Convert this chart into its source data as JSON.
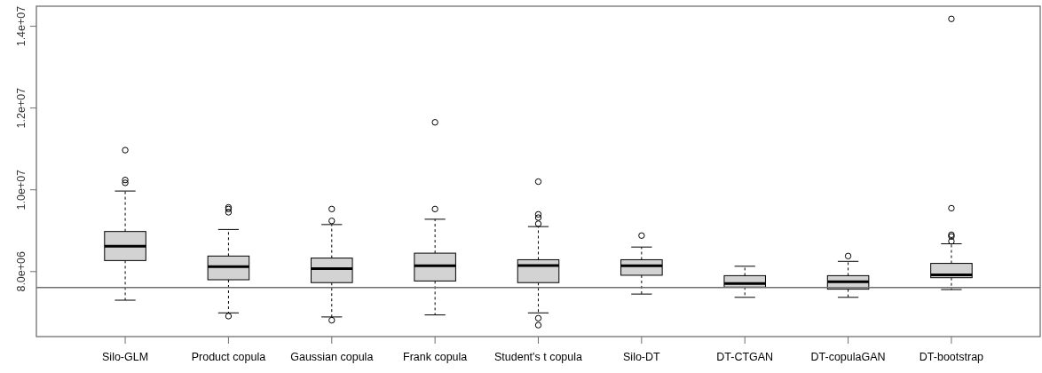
{
  "chart_data": {
    "type": "box",
    "categories": [
      "Silo-GLM",
      "Product copula",
      "Gaussian copula",
      "Frank copula",
      "Student's t copula",
      "Silo-DT",
      "DT-CTGAN",
      "DT-copulaGAN",
      "DT-bootstrap"
    ],
    "color": "#d3d3d3",
    "boxes": [
      {
        "low": 7300000,
        "q1": 8270000,
        "median": 8620000,
        "q3": 8980000,
        "high": 9970000,
        "outliers": [
          10970000,
          10240000,
          10170000
        ]
      },
      {
        "low": 6990000,
        "q1": 7800000,
        "median": 8120000,
        "q3": 8380000,
        "high": 9030000,
        "outliers": [
          9570000,
          9530000,
          9450000,
          6910000
        ]
      },
      {
        "low": 6890000,
        "q1": 7730000,
        "median": 8070000,
        "q3": 8330000,
        "high": 9150000,
        "outliers": [
          9530000,
          9240000,
          6810000
        ]
      },
      {
        "low": 6940000,
        "q1": 7770000,
        "median": 8140000,
        "q3": 8450000,
        "high": 9280000,
        "outliers": [
          9530000,
          11650000
        ]
      },
      {
        "low": 6990000,
        "q1": 7730000,
        "median": 8150000,
        "q3": 8290000,
        "high": 9100000,
        "outliers": [
          10200000,
          9400000,
          9320000,
          9170000,
          6860000,
          6690000
        ]
      },
      {
        "low": 7450000,
        "q1": 7910000,
        "median": 8140000,
        "q3": 8290000,
        "high": 8600000,
        "outliers": [
          8880000
        ]
      },
      {
        "low": 7370000,
        "q1": 7620000,
        "median": 7710000,
        "q3": 7900000,
        "high": 8130000
      },
      {
        "low": 7370000,
        "q1": 7570000,
        "median": 7750000,
        "q3": 7900000,
        "high": 8250000,
        "outliers": [
          8380000
        ]
      },
      {
        "low": 7560000,
        "q1": 7850000,
        "median": 7920000,
        "q3": 8200000,
        "high": 8680000,
        "outliers": [
          14180000,
          9550000,
          8900000,
          8860000,
          8740000
        ]
      }
    ],
    "ylim": [
      6410000,
      14490000
    ],
    "yticks": [
      {
        "value": 8000000,
        "label": "8.0e+06"
      },
      {
        "value": 10000000,
        "label": "1.0e+07"
      },
      {
        "value": 12000000,
        "label": "1.2e+07"
      },
      {
        "value": 14000000,
        "label": "1.4e+07"
      }
    ],
    "ref_lines": [
      {
        "axis": "y",
        "value": 7610000,
        "color": "#707070"
      }
    ]
  }
}
